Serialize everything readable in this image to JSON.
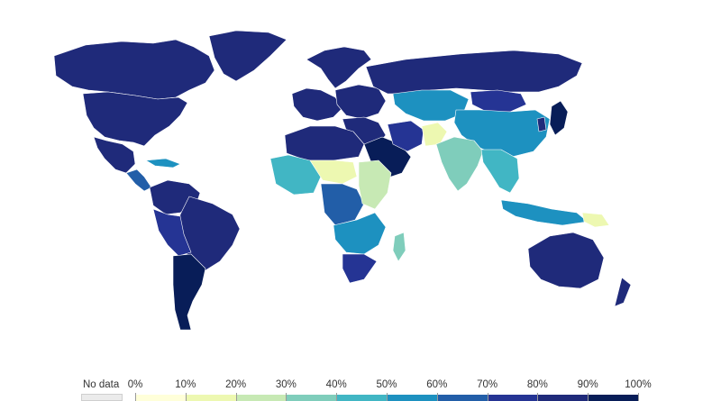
{
  "legend": {
    "no_data_label": "No data",
    "ticks": [
      "0%",
      "10%",
      "20%",
      "30%",
      "40%",
      "50%",
      "60%",
      "70%",
      "80%",
      "90%",
      "100%"
    ],
    "bin_colors": [
      "#ffffd9",
      "#edf8b1",
      "#c7e9b4",
      "#7fcdbb",
      "#41b6c4",
      "#1d91c0",
      "#225ea8",
      "#253494",
      "#1f2a7a",
      "#081d58"
    ],
    "no_data_color": "#ebebeb"
  },
  "map": {
    "ocean_color": "#ffffff",
    "regions": [
      {
        "name": "Canada",
        "value": 88
      },
      {
        "name": "United States",
        "value": 86
      },
      {
        "name": "Greenland",
        "value": 88
      },
      {
        "name": "Mexico",
        "value": 80
      },
      {
        "name": "Central America",
        "value": 62
      },
      {
        "name": "Caribbean",
        "value": 55
      },
      {
        "name": "Venezuela-Colombia",
        "value": 82
      },
      {
        "name": "Brazil",
        "value": 84
      },
      {
        "name": "Peru-Bolivia",
        "value": 74
      },
      {
        "name": "Argentina-Chile",
        "value": 92
      },
      {
        "name": "Iceland-Scandinavia",
        "value": 88
      },
      {
        "name": "Western Europe",
        "value": 86
      },
      {
        "name": "Eastern Europe",
        "value": 80
      },
      {
        "name": "Russia",
        "value": 84
      },
      {
        "name": "Kazakhstan-Central Asia",
        "value": 58
      },
      {
        "name": "Mongolia",
        "value": 70
      },
      {
        "name": "China",
        "value": 54
      },
      {
        "name": "Japan",
        "value": 94
      },
      {
        "name": "Korea",
        "value": 88
      },
      {
        "name": "Middle East",
        "value": 82
      },
      {
        "name": "Saudi Arabia-Gulf",
        "value": 92
      },
      {
        "name": "Iran",
        "value": 76
      },
      {
        "name": "Afghanistan",
        "value": 18
      },
      {
        "name": "India",
        "value": 34
      },
      {
        "name": "Southeast Asia",
        "value": 48
      },
      {
        "name": "Indonesia",
        "value": 56
      },
      {
        "name": "Papua New Guinea",
        "value": 12
      },
      {
        "name": "Australia",
        "value": 88
      },
      {
        "name": "New Zealand",
        "value": 88
      },
      {
        "name": "North Africa",
        "value": 80
      },
      {
        "name": "West Africa",
        "value": 44
      },
      {
        "name": "Sahel",
        "value": 14
      },
      {
        "name": "Central Africa",
        "value": 62
      },
      {
        "name": "East Africa",
        "value": 22
      },
      {
        "name": "Southern Africa",
        "value": 56
      },
      {
        "name": "South Africa",
        "value": 76
      },
      {
        "name": "Madagascar",
        "value": 38
      }
    ]
  }
}
